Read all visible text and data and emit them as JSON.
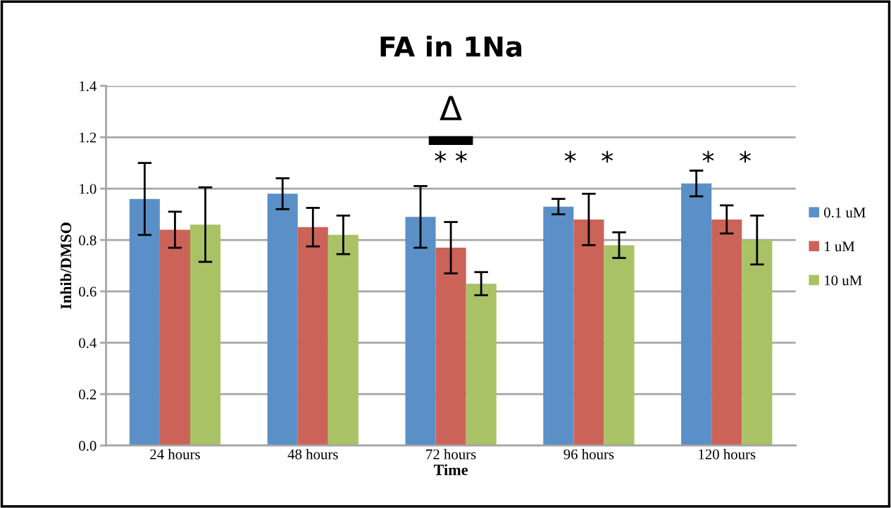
{
  "chart_data": {
    "type": "bar",
    "title": "FA in 1Na",
    "xlabel": "Time",
    "ylabel": "Inhib/DMSO",
    "categories": [
      "24 hours",
      "48 hours",
      "72 hours",
      "96 hours",
      "120 hours"
    ],
    "series": [
      {
        "name": "0.1 uM",
        "color": "#5b8fc7",
        "values": [
          0.96,
          0.98,
          0.89,
          0.93,
          1.02
        ],
        "errors": [
          0.14,
          0.06,
          0.12,
          0.03,
          0.05
        ]
      },
      {
        "name": "1 uM",
        "color": "#cb6359",
        "values": [
          0.84,
          0.85,
          0.77,
          0.88,
          0.88
        ],
        "errors": [
          0.07,
          0.075,
          0.1,
          0.1,
          0.055
        ]
      },
      {
        "name": "10 uM",
        "color": "#aac266",
        "values": [
          0.86,
          0.82,
          0.63,
          0.78,
          0.8
        ],
        "errors": [
          0.145,
          0.075,
          0.045,
          0.05,
          0.095
        ]
      }
    ],
    "ylim": [
      0,
      1.4
    ],
    "yticks": [
      {
        "value": 0,
        "label": "0.0"
      },
      0.2,
      0.4,
      0.6,
      0.8,
      {
        "value": 1.0,
        "label": "1.0"
      },
      1.2,
      1.4
    ],
    "grid": "y",
    "legend": "right",
    "annotations": [
      "Δ",
      "* *",
      "*   *",
      "*   *"
    ]
  }
}
